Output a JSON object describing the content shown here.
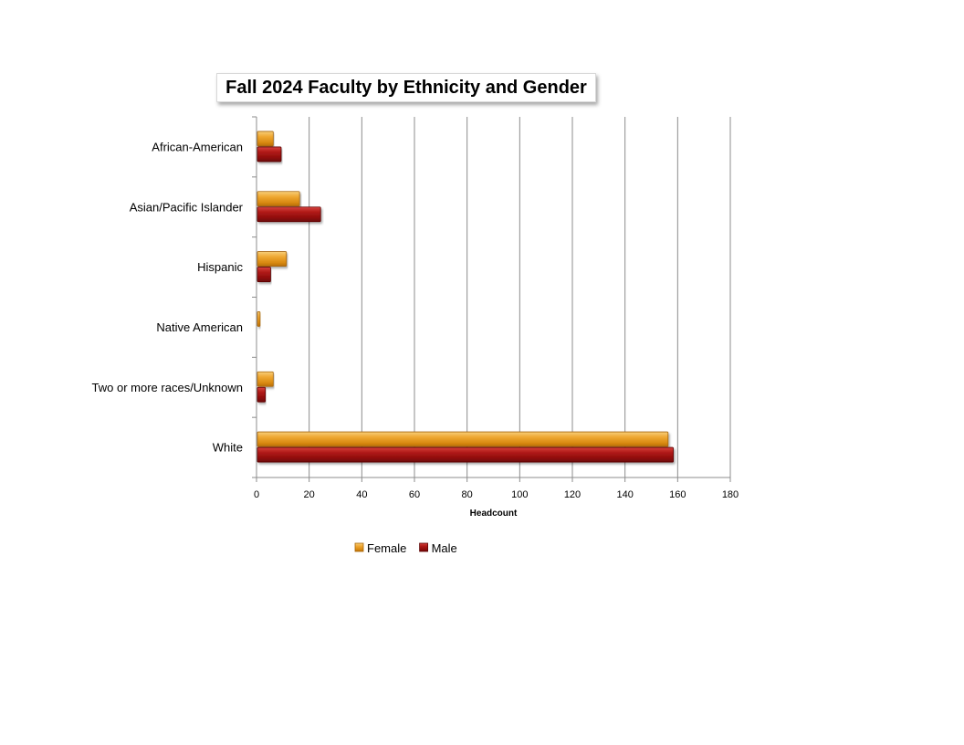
{
  "chart_data": {
    "type": "bar",
    "orientation": "horizontal",
    "title": "Fall 2024 Faculty by Ethnicity and Gender",
    "xlabel": "Headcount",
    "ylabel": "",
    "categories": [
      "African-American",
      "Asian/Pacific Islander",
      "Hispanic",
      "Native American",
      "Two or more races/Unknown",
      "White"
    ],
    "series": [
      {
        "name": "Female",
        "color": "#E39A1F",
        "values": [
          6,
          16,
          11,
          1,
          6,
          156
        ]
      },
      {
        "name": "Male",
        "color": "#A01010",
        "values": [
          9,
          24,
          5,
          0,
          3,
          158
        ]
      }
    ],
    "xlim": [
      0,
      180
    ],
    "xticks": [
      0,
      20,
      40,
      60,
      80,
      100,
      120,
      140,
      160,
      180
    ],
    "grid": "vertical",
    "legend": "bottom"
  }
}
